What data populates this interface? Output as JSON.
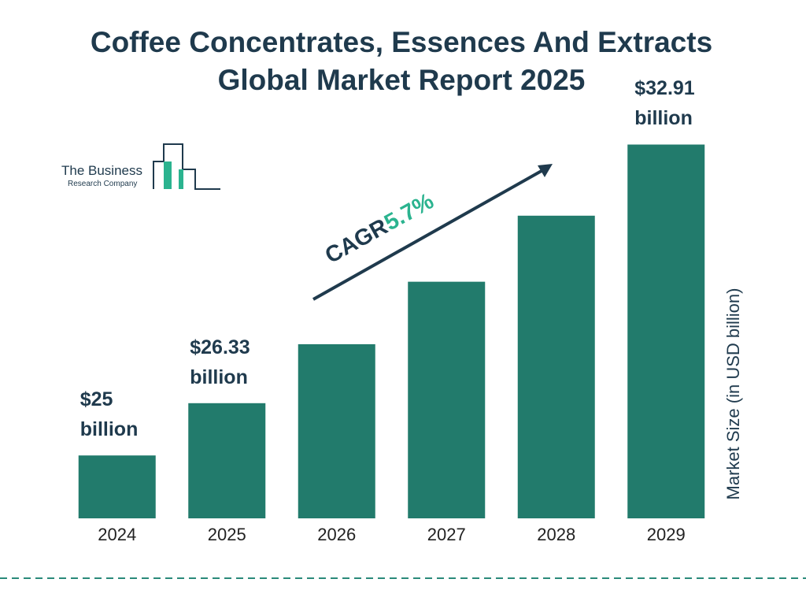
{
  "chart_data": {
    "type": "bar",
    "title": "Coffee Concentrates, Essences And Extracts Global Market Report 2025",
    "categories": [
      "2024",
      "2025",
      "2026",
      "2027",
      "2028",
      "2029"
    ],
    "values": [
      25,
      26.33,
      27.83,
      29.42,
      31.1,
      32.91
    ],
    "value_labels": [
      "$25 billion",
      "$26.33 billion",
      null,
      null,
      null,
      "$32.91 billion"
    ],
    "color": "#227b6c",
    "ylim": [
      23.4,
      33
    ],
    "y_label": "Market Size (in USD billion)",
    "annotation": {
      "label": "CAGR",
      "value": "5.7%"
    },
    "logo": {
      "line1": "The Business",
      "line2": "Research Company"
    }
  }
}
